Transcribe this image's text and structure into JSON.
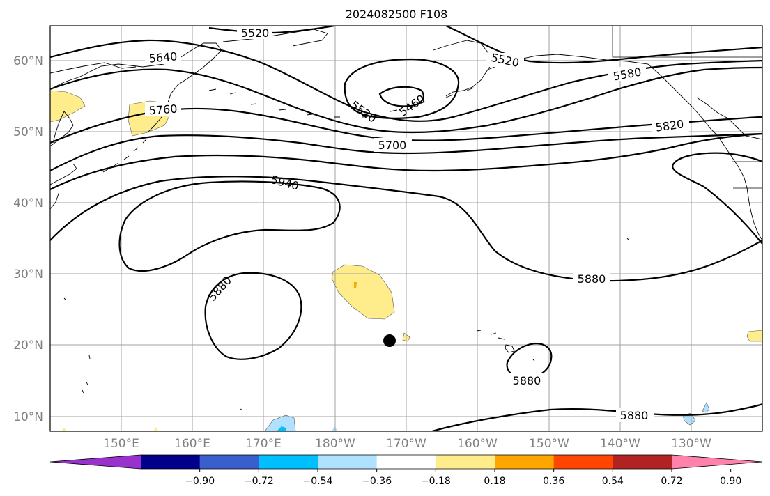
{
  "title": "2024082500 F108",
  "lat_labels": [
    "60°N",
    "50°N",
    "40°N",
    "30°N",
    "20°N",
    "10°N"
  ],
  "lon_labels": [
    "150°E",
    "160°E",
    "170°E",
    "180°W",
    "170°W",
    "160°W",
    "150°W",
    "140°W",
    "130°W"
  ],
  "contour_labels": [
    "5520",
    "5640",
    "5760",
    "5520",
    "5460",
    "5520",
    "5580",
    "5700",
    "5820",
    "5940",
    "5880",
    "5880",
    "5880",
    "5880"
  ],
  "colorbar": {
    "colors": [
      "#9932cc",
      "#00008b",
      "#3a5fcd",
      "#00bfff",
      "#b0e2ff",
      "#ffffff",
      "#ffec8b",
      "#ffa500",
      "#ff4500",
      "#b22222",
      "#ff82ab"
    ],
    "ticks": [
      "−0.90",
      "−0.72",
      "−0.54",
      "−0.36",
      "−0.18",
      "0.18",
      "0.36",
      "0.54",
      "0.72",
      "0.90"
    ]
  },
  "colors": {
    "positive_fill": "#ffec8b",
    "negative_fill": "#b0e2ff",
    "grid": "#a0a0a0",
    "contour": "#000000"
  }
}
